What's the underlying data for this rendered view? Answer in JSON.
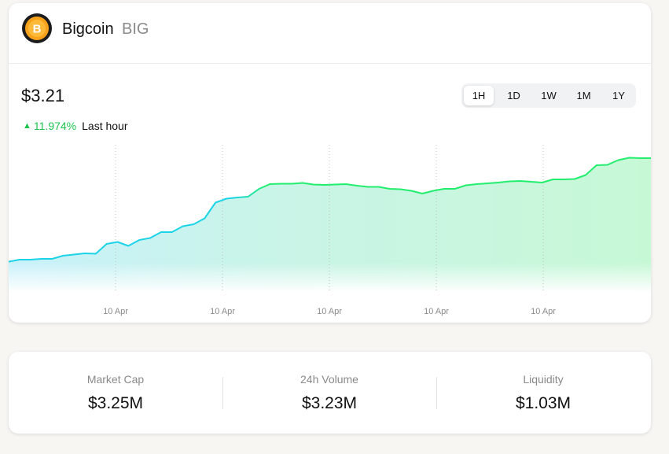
{
  "coin": {
    "name": "Bigcoin",
    "ticker": "BIG",
    "icon": "bitcoin-coin-icon",
    "icon_symbol": "B"
  },
  "price": "$3.21",
  "change": {
    "percent": "11.974%",
    "direction": "up",
    "period_label": "Last hour",
    "color": "#1ec34f"
  },
  "ranges": {
    "items": [
      "1H",
      "1D",
      "1W",
      "1M",
      "1Y"
    ],
    "selected": "1H"
  },
  "chart_data": {
    "type": "area",
    "x_tick_labels": [
      "10 Apr",
      "10 Apr",
      "10 Apr",
      "10 Apr",
      "10 Apr"
    ],
    "values": [
      2.87,
      2.875,
      2.875,
      2.877,
      2.877,
      2.885,
      2.888,
      2.891,
      2.89,
      2.915,
      2.92,
      2.91,
      2.925,
      2.93,
      2.945,
      2.945,
      2.96,
      2.965,
      2.98,
      3.02,
      3.03,
      3.033,
      3.035,
      3.055,
      3.067,
      3.068,
      3.068,
      3.07,
      3.066,
      3.065,
      3.066,
      3.067,
      3.063,
      3.06,
      3.06,
      3.055,
      3.054,
      3.05,
      3.043,
      3.05,
      3.055,
      3.055,
      3.064,
      3.067,
      3.069,
      3.071,
      3.074,
      3.075,
      3.073,
      3.071,
      3.079,
      3.079,
      3.08,
      3.09,
      3.115,
      3.116,
      3.128,
      3.134,
      3.133,
      3.133
    ],
    "ylim": [
      2.795,
      3.175
    ],
    "colors": {
      "start": "#1dd3e8",
      "end": "#22ee6e"
    }
  },
  "stats": [
    {
      "label": "Market Cap",
      "value": "$3.25M"
    },
    {
      "label": "24h Volume",
      "value": "$3.23M"
    },
    {
      "label": "Liquidity",
      "value": "$1.03M"
    }
  ]
}
